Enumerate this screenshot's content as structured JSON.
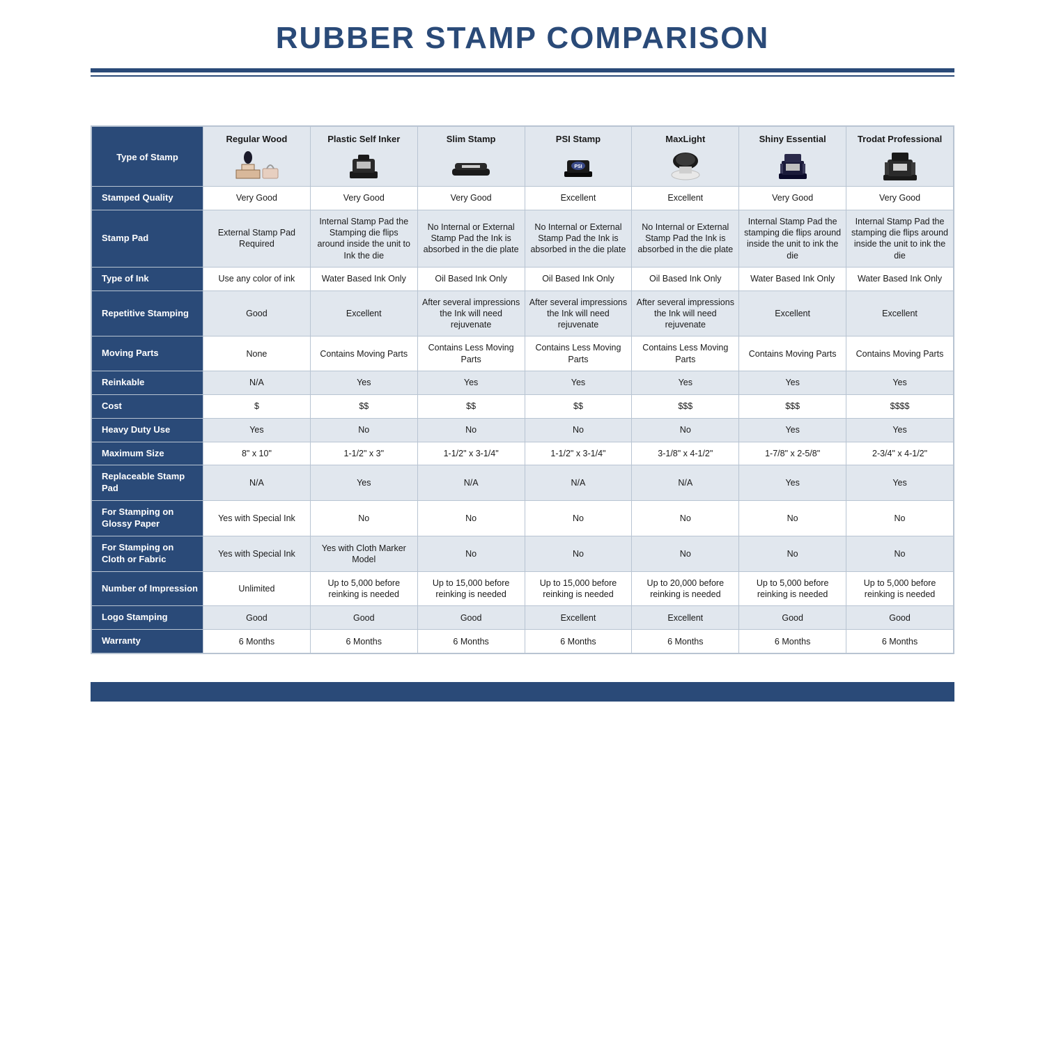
{
  "title": "RUBBER STAMP COMPARISON",
  "colors": {
    "brand": "#2a4a78",
    "header_bg": "#e1e7ee",
    "row_alt_bg": "#e1e7ee",
    "border": "#b8c4d2",
    "page_bg": "#ffffff",
    "text": "#1a1a1a",
    "header_text": "#ffffff"
  },
  "type_of_stamp_label": "Type of Stamp",
  "columns": [
    "Regular Wood",
    "Plastic Self Inker",
    "Slim Stamp",
    "PSI Stamp",
    "MaxLight",
    "Shiny Essential",
    "Trodat Professional"
  ],
  "rows": [
    {
      "label": "Stamped Quality",
      "cells": [
        "Very Good",
        "Very Good",
        "Very Good",
        "Excellent",
        "Excellent",
        "Very Good",
        "Very Good"
      ]
    },
    {
      "label": "Stamp Pad",
      "cells": [
        "External Stamp Pad Required",
        "Internal Stamp Pad the Stamping die flips around inside the unit to Ink the die",
        "No Internal or External Stamp Pad the Ink is absorbed in the die plate",
        "No Internal or External Stamp Pad the Ink is absorbed in the die plate",
        "No Internal or External Stamp Pad the Ink is absorbed in the die plate",
        "Internal Stamp Pad the stamping die flips around inside the unit to ink the die",
        "Internal Stamp Pad the stamping die flips around inside the unit to ink the die"
      ]
    },
    {
      "label": "Type of Ink",
      "cells": [
        "Use any color of ink",
        "Water Based Ink Only",
        "Oil Based Ink Only",
        "Oil Based Ink Only",
        "Oil Based Ink Only",
        "Water Based Ink Only",
        "Water Based Ink Only"
      ]
    },
    {
      "label": "Repetitive Stamping",
      "cells": [
        "Good",
        "Excellent",
        "After several impressions the Ink will need rejuvenate",
        "After several impressions the Ink will need rejuvenate",
        "After several impressions the Ink will need rejuvenate",
        "Excellent",
        "Excellent"
      ]
    },
    {
      "label": "Moving Parts",
      "cells": [
        "None",
        "Contains Moving Parts",
        "Contains Less Moving Parts",
        "Contains Less Moving Parts",
        "Contains Less Moving Parts",
        "Contains Moving Parts",
        "Contains Moving Parts"
      ]
    },
    {
      "label": "Reinkable",
      "cells": [
        "N/A",
        "Yes",
        "Yes",
        "Yes",
        "Yes",
        "Yes",
        "Yes"
      ]
    },
    {
      "label": "Cost",
      "cells": [
        "$",
        "$$",
        "$$",
        "$$",
        "$$$",
        "$$$",
        "$$$$"
      ]
    },
    {
      "label": "Heavy Duty Use",
      "cells": [
        "Yes",
        "No",
        "No",
        "No",
        "No",
        "Yes",
        "Yes"
      ]
    },
    {
      "label": "Maximum Size",
      "cells": [
        "8\" x 10\"",
        "1-1/2\" x 3\"",
        "1-1/2\" x 3-1/4\"",
        "1-1/2\" x 3-1/4\"",
        "3-1/8\" x 4-1/2\"",
        "1-7/8\" x 2-5/8\"",
        "2-3/4\" x 4-1/2\""
      ]
    },
    {
      "label": "Replaceable Stamp Pad",
      "cells": [
        "N/A",
        "Yes",
        "N/A",
        "N/A",
        "N/A",
        "Yes",
        "Yes"
      ]
    },
    {
      "label": "For Stamping on Glossy Paper",
      "cells": [
        "Yes with Special Ink",
        "No",
        "No",
        "No",
        "No",
        "No",
        "No"
      ]
    },
    {
      "label": "For Stamping on Cloth or Fabric",
      "cells": [
        "Yes with Special Ink",
        "Yes with Cloth Marker Model",
        "No",
        "No",
        "No",
        "No",
        "No"
      ]
    },
    {
      "label": "Number of Impression",
      "cells": [
        "Unlimited",
        "Up to 5,000 before reinking is needed",
        "Up to 15,000 before reinking is needed",
        "Up to 15,000 before reinking is needed",
        "Up to 20,000 before reinking is needed",
        "Up to 5,000 before reinking is needed",
        "Up to 5,000 before reinking is needed"
      ]
    },
    {
      "label": "Logo Stamping",
      "cells": [
        "Good",
        "Good",
        "Good",
        "Excellent",
        "Excellent",
        "Good",
        "Good"
      ]
    },
    {
      "label": "Warranty",
      "cells": [
        "6 Months",
        "6 Months",
        "6 Months",
        "6 Months",
        "6 Months",
        "6 Months",
        "6 Months"
      ]
    }
  ],
  "icons": [
    "wood-stamp-icon",
    "self-inker-icon",
    "slim-stamp-icon",
    "psi-stamp-icon",
    "maxlight-stamp-icon",
    "shiny-essential-icon",
    "trodat-professional-icon"
  ]
}
